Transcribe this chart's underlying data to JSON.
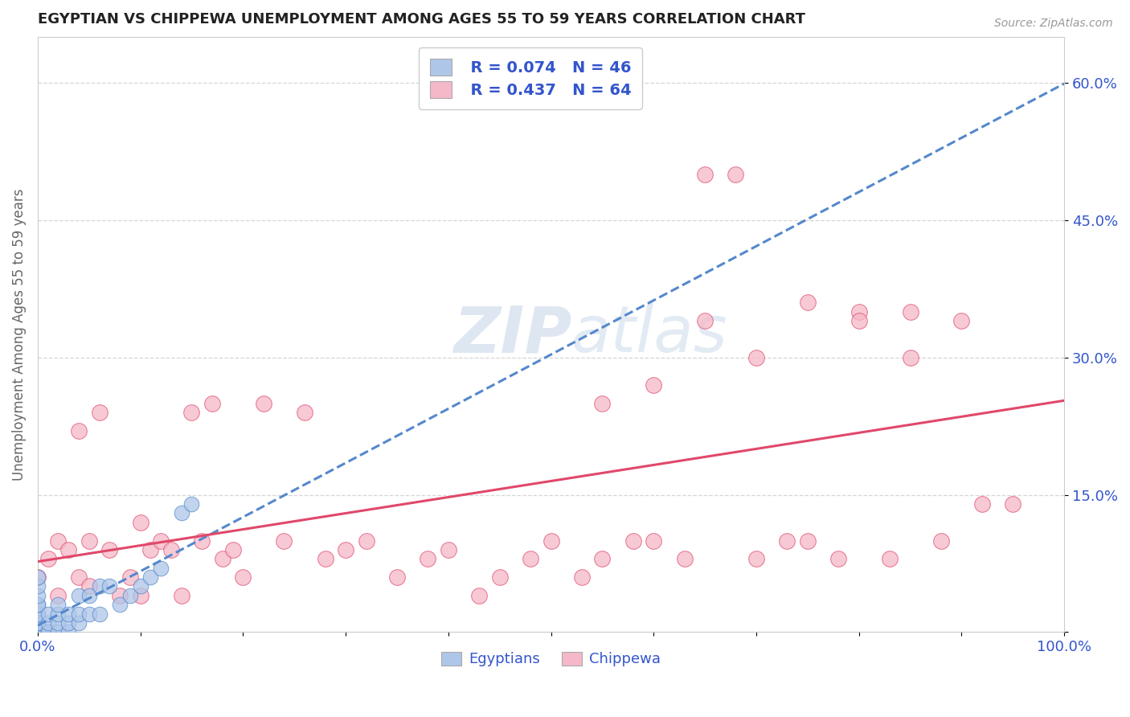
{
  "title": "EGYPTIAN VS CHIPPEWA UNEMPLOYMENT AMONG AGES 55 TO 59 YEARS CORRELATION CHART",
  "source_text": "Source: ZipAtlas.com",
  "ylabel": "Unemployment Among Ages 55 to 59 years",
  "xlim": [
    0,
    1.0
  ],
  "ylim": [
    0,
    0.65
  ],
  "xticks": [
    0.0,
    0.1,
    0.2,
    0.3,
    0.4,
    0.5,
    0.6,
    0.7,
    0.8,
    0.9,
    1.0
  ],
  "xticklabels": [
    "0.0%",
    "",
    "",
    "",
    "",
    "",
    "",
    "",
    "",
    "",
    "100.0%"
  ],
  "yticks": [
    0.0,
    0.15,
    0.3,
    0.45,
    0.6
  ],
  "yticklabels": [
    "",
    "15.0%",
    "30.0%",
    "45.0%",
    "60.0%"
  ],
  "grid_color": "#cccccc",
  "background_color": "#ffffff",
  "legend_r1": "R = 0.074",
  "legend_n1": "N = 46",
  "legend_r2": "R = 0.437",
  "legend_n2": "N = 64",
  "egyptian_color": "#aec6e8",
  "chippewa_color": "#f5b8c8",
  "egyptian_line_color": "#5588cc",
  "chippewa_line_color": "#e0486a",
  "label_color": "#3355cc",
  "egyptians_x": [
    0.0,
    0.0,
    0.0,
    0.0,
    0.0,
    0.0,
    0.0,
    0.0,
    0.0,
    0.0,
    0.0,
    0.0,
    0.0,
    0.0,
    0.0,
    0.0,
    0.0,
    0.0,
    0.0,
    0.0,
    0.01,
    0.01,
    0.01,
    0.01,
    0.02,
    0.02,
    0.02,
    0.02,
    0.03,
    0.03,
    0.03,
    0.04,
    0.04,
    0.04,
    0.05,
    0.05,
    0.06,
    0.06,
    0.07,
    0.08,
    0.09,
    0.1,
    0.11,
    0.12,
    0.14,
    0.15
  ],
  "egyptians_y": [
    0.0,
    0.0,
    0.0,
    0.0,
    0.0,
    0.0,
    0.0,
    0.0,
    0.0,
    0.0,
    0.01,
    0.01,
    0.01,
    0.02,
    0.02,
    0.03,
    0.03,
    0.04,
    0.05,
    0.06,
    0.0,
    0.0,
    0.01,
    0.02,
    0.0,
    0.01,
    0.02,
    0.03,
    0.0,
    0.01,
    0.02,
    0.01,
    0.02,
    0.04,
    0.02,
    0.04,
    0.02,
    0.05,
    0.05,
    0.03,
    0.04,
    0.05,
    0.06,
    0.07,
    0.13,
    0.14
  ],
  "chippewa_x": [
    0.0,
    0.0,
    0.01,
    0.02,
    0.02,
    0.03,
    0.04,
    0.04,
    0.05,
    0.05,
    0.06,
    0.07,
    0.08,
    0.09,
    0.1,
    0.1,
    0.11,
    0.12,
    0.13,
    0.14,
    0.15,
    0.16,
    0.17,
    0.18,
    0.19,
    0.2,
    0.22,
    0.24,
    0.26,
    0.28,
    0.3,
    0.32,
    0.35,
    0.38,
    0.4,
    0.43,
    0.45,
    0.48,
    0.5,
    0.53,
    0.55,
    0.58,
    0.6,
    0.63,
    0.65,
    0.68,
    0.7,
    0.73,
    0.75,
    0.78,
    0.8,
    0.83,
    0.85,
    0.88,
    0.9,
    0.92,
    0.55,
    0.6,
    0.65,
    0.7,
    0.75,
    0.8,
    0.85,
    0.95
  ],
  "chippewa_y": [
    0.01,
    0.06,
    0.08,
    0.04,
    0.1,
    0.09,
    0.06,
    0.22,
    0.05,
    0.1,
    0.24,
    0.09,
    0.04,
    0.06,
    0.04,
    0.12,
    0.09,
    0.1,
    0.09,
    0.04,
    0.24,
    0.1,
    0.25,
    0.08,
    0.09,
    0.06,
    0.25,
    0.1,
    0.24,
    0.08,
    0.09,
    0.1,
    0.06,
    0.08,
    0.09,
    0.04,
    0.06,
    0.08,
    0.1,
    0.06,
    0.08,
    0.1,
    0.1,
    0.08,
    0.5,
    0.5,
    0.08,
    0.1,
    0.1,
    0.08,
    0.35,
    0.08,
    0.35,
    0.1,
    0.34,
    0.14,
    0.25,
    0.27,
    0.34,
    0.3,
    0.36,
    0.34,
    0.3,
    0.14
  ]
}
